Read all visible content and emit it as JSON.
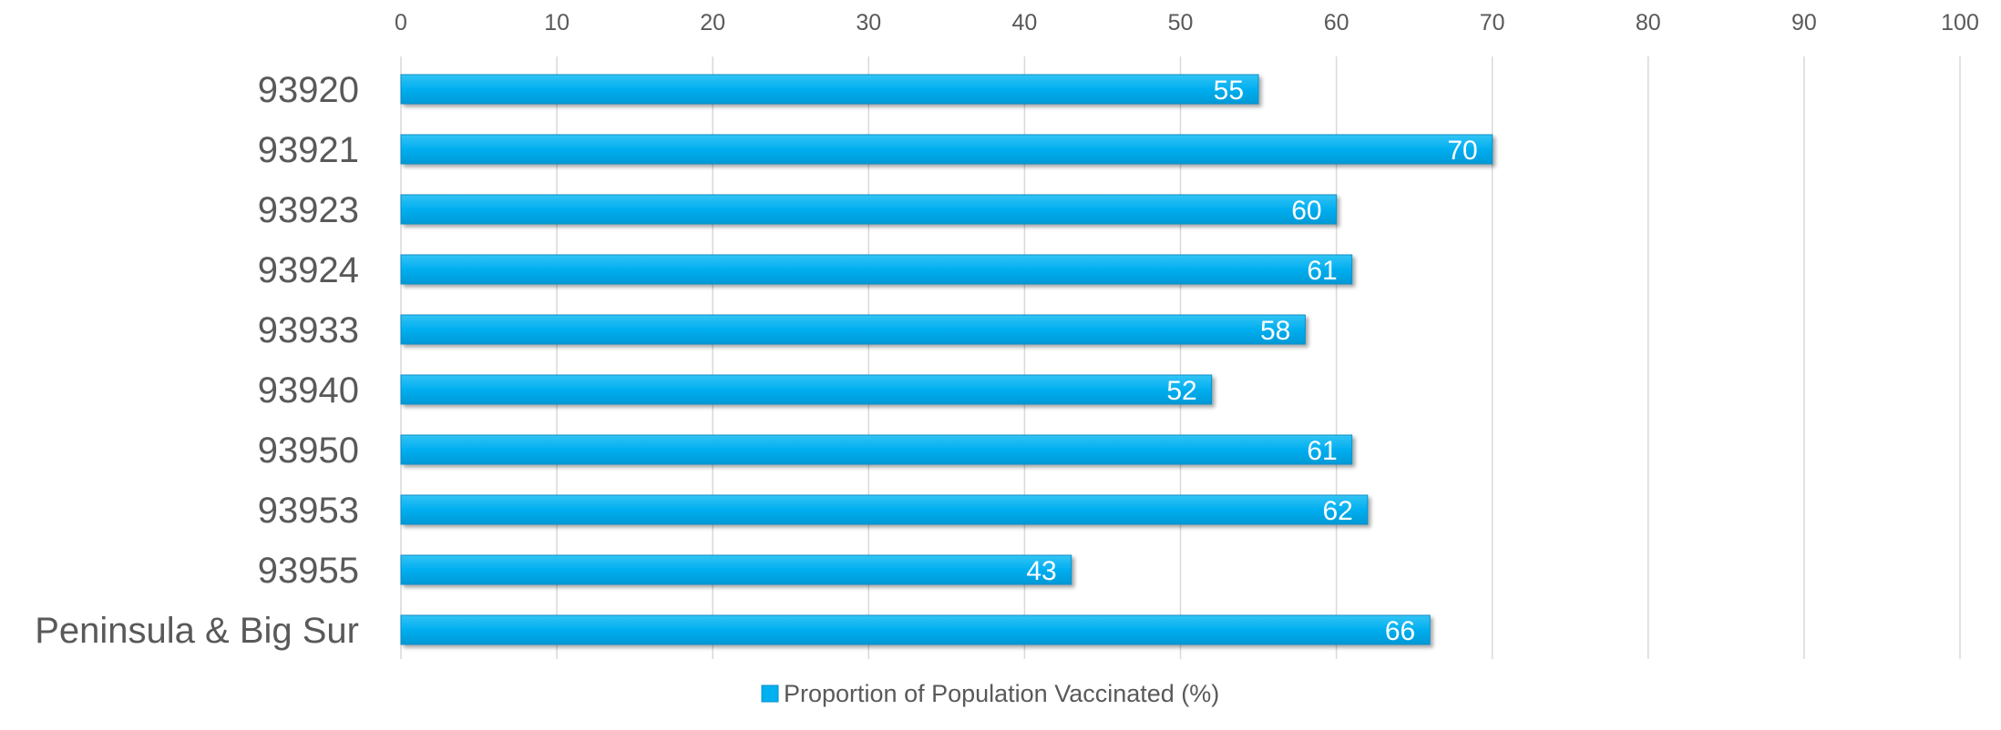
{
  "chart_data": {
    "type": "bar",
    "orientation": "horizontal",
    "categories": [
      "93920",
      "93921",
      "93923",
      "93924",
      "93933",
      "93940",
      "93950",
      "93953",
      "93955",
      "Peninsula & Big Sur"
    ],
    "series": [
      {
        "name": "Proportion of Population Vaccinated (%)",
        "values": [
          55,
          70,
          60,
          61,
          58,
          52,
          61,
          62,
          43,
          66
        ],
        "color": "#00b0f0"
      }
    ],
    "x_ticks": [
      "0",
      "10",
      "20",
      "30",
      "40",
      "50",
      "60",
      "70",
      "80",
      "90",
      "100"
    ],
    "xlim": [
      0,
      100
    ],
    "grid": true,
    "x_axis_position": "top",
    "legend_position": "bottom",
    "data_labels": true
  }
}
